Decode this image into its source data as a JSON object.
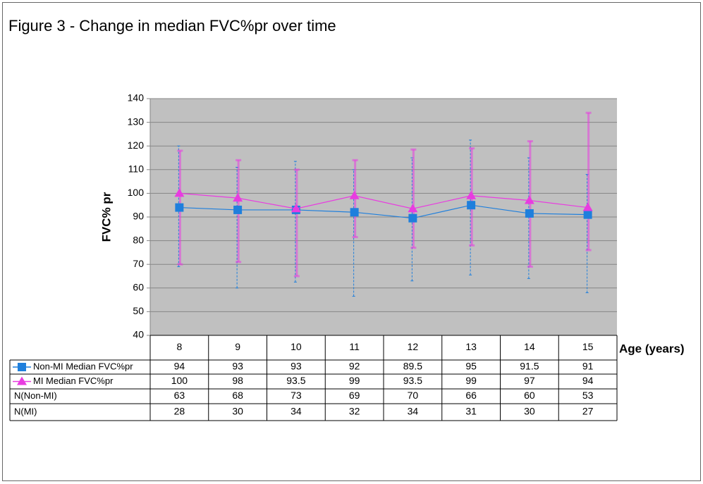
{
  "chart_data": {
    "type": "line",
    "title": "Figure 3 - Change in median FVC%pr over time",
    "ylabel": "FVC% pr",
    "xlabel": "Age (years)",
    "categories": [
      "8",
      "9",
      "10",
      "11",
      "12",
      "13",
      "14",
      "15"
    ],
    "ylim": [
      40,
      140
    ],
    "yticks": [
      40,
      50,
      60,
      70,
      80,
      90,
      100,
      110,
      120,
      130,
      140
    ],
    "grid": true,
    "series": [
      {
        "name": "Non-MI Median FVC%pr",
        "color": "#1f7fdc",
        "marker": "square",
        "values": [
          94,
          93,
          93,
          92,
          89.5,
          95,
          91.5,
          91
        ],
        "error_low": [
          69,
          60,
          62.5,
          56.5,
          63,
          65.5,
          64,
          58
        ],
        "error_high": [
          120,
          111,
          113.5,
          110,
          115,
          122.5,
          115,
          108
        ]
      },
      {
        "name": "MI Median FVC%pr",
        "color": "#e83ce0",
        "marker": "triangle",
        "values": [
          100,
          98,
          93.5,
          99,
          93.5,
          99,
          97,
          94
        ],
        "error_low": [
          70,
          71,
          65,
          81.5,
          77,
          78,
          69,
          76
        ],
        "error_high": [
          118,
          114,
          110,
          114,
          118.5,
          119,
          122,
          134
        ]
      }
    ],
    "table_rows": [
      {
        "label": "N(Non-MI)",
        "values": [
          63,
          68,
          73,
          69,
          70,
          66,
          60,
          53
        ]
      },
      {
        "label": "N(MI)",
        "values": [
          28,
          30,
          34,
          32,
          34,
          31,
          30,
          27
        ]
      }
    ]
  }
}
